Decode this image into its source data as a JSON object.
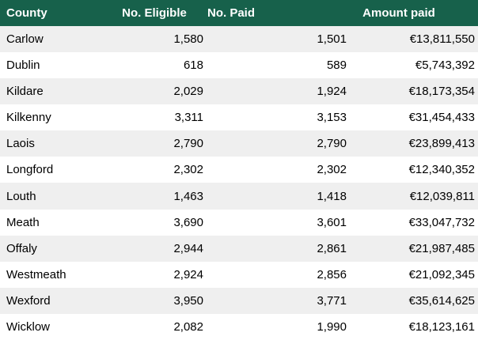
{
  "colors": {
    "header_bg": "#17614b",
    "header_text": "#ffffff",
    "row_bg": "#ffffff",
    "row_alt_bg": "#efefef",
    "body_text": "#000000"
  },
  "table": {
    "columns": [
      {
        "key": "county",
        "label": "County"
      },
      {
        "key": "eligible",
        "label": "No. Eligible"
      },
      {
        "key": "paid",
        "label": "No. Paid"
      },
      {
        "key": "amount",
        "label": "Amount paid"
      }
    ],
    "rows": [
      {
        "county": "Carlow",
        "eligible": "1,580",
        "paid": "1,501",
        "amount": "€13,811,550"
      },
      {
        "county": "Dublin",
        "eligible": "618",
        "paid": "589",
        "amount": "€5,743,392"
      },
      {
        "county": "Kildare",
        "eligible": "2,029",
        "paid": "1,924",
        "amount": "€18,173,354"
      },
      {
        "county": "Kilkenny",
        "eligible": "3,311",
        "paid": "3,153",
        "amount": "€31,454,433"
      },
      {
        "county": "Laois",
        "eligible": "2,790",
        "paid": "2,790",
        "amount": "€23,899,413"
      },
      {
        "county": "Longford",
        "eligible": "2,302",
        "paid": "2,302",
        "amount": "€12,340,352"
      },
      {
        "county": "Louth",
        "eligible": "1,463",
        "paid": "1,418",
        "amount": "€12,039,811"
      },
      {
        "county": "Meath",
        "eligible": "3,690",
        "paid": "3,601",
        "amount": "€33,047,732"
      },
      {
        "county": "Offaly",
        "eligible": "2,944",
        "paid": "2,861",
        "amount": "€21,987,485"
      },
      {
        "county": "Westmeath",
        "eligible": "2,924",
        "paid": "2,856",
        "amount": "€21,092,345"
      },
      {
        "county": "Wexford",
        "eligible": "3,950",
        "paid": "3,771",
        "amount": "€35,614,625"
      },
      {
        "county": "Wicklow",
        "eligible": "2,082",
        "paid": "1,990",
        "amount": "€18,123,161"
      }
    ]
  },
  "chart_data": {
    "type": "table",
    "title": "",
    "columns": [
      "County",
      "No. Eligible",
      "No. Paid",
      "Amount paid"
    ],
    "categories": [
      "Carlow",
      "Dublin",
      "Kildare",
      "Kilkenny",
      "Laois",
      "Longford",
      "Louth",
      "Meath",
      "Offaly",
      "Westmeath",
      "Wexford",
      "Wicklow"
    ],
    "series": [
      {
        "name": "No. Eligible",
        "values": [
          1580,
          618,
          2029,
          3311,
          2790,
          2302,
          1463,
          3690,
          2944,
          2924,
          3950,
          2082
        ]
      },
      {
        "name": "No. Paid",
        "values": [
          1501,
          589,
          1924,
          3153,
          2790,
          2302,
          1418,
          3601,
          2861,
          2856,
          3771,
          1990
        ]
      },
      {
        "name": "Amount paid (EUR)",
        "values": [
          13811550,
          5743392,
          18173354,
          31454433,
          23899413,
          12340352,
          12039811,
          33047732,
          21987485,
          21092345,
          35614625,
          18123161
        ]
      }
    ],
    "currency": "EUR",
    "layout": {
      "header_style": "dark-green band, white bold text",
      "row_striping": "alternating #efefef / #ffffff starting with first data row"
    }
  }
}
